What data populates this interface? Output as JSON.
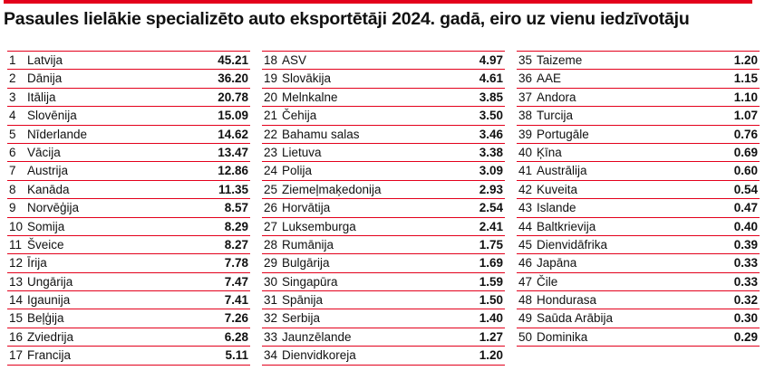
{
  "title": "Pasaules lielākie specializēto auto eksportētāji 2024. gadā, eiro uz vienu iedzīvotāju",
  "accent_color": "#e3001b",
  "chart_data": {
    "type": "table",
    "title": "Pasaules lielākie specializēto auto eksportētāji 2024. gadā, eiro uz vienu iedzīvotāju",
    "columns": [
      [
        {
          "rank": "1",
          "name": "Latvija",
          "value": "45.21"
        },
        {
          "rank": "2",
          "name": "Dānija",
          "value": "36.20"
        },
        {
          "rank": "3",
          "name": "Itālija",
          "value": "20.78"
        },
        {
          "rank": "4",
          "name": "Slovēnija",
          "value": "15.09"
        },
        {
          "rank": "5",
          "name": "Nīderlande",
          "value": "14.62"
        },
        {
          "rank": "6",
          "name": "Vācija",
          "value": "13.47"
        },
        {
          "rank": "7",
          "name": "Austrija",
          "value": "12.86"
        },
        {
          "rank": "8",
          "name": "Kanāda",
          "value": "11.35"
        },
        {
          "rank": "9",
          "name": "Norvēģija",
          "value": "8.57"
        },
        {
          "rank": "10",
          "name": "Somija",
          "value": "8.29"
        },
        {
          "rank": "11",
          "name": "Šveice",
          "value": "8.27"
        },
        {
          "rank": "12",
          "name": "Īrija",
          "value": "7.78"
        },
        {
          "rank": "13",
          "name": "Ungārija",
          "value": "7.47"
        },
        {
          "rank": "14",
          "name": "Igaunija",
          "value": "7.41"
        },
        {
          "rank": "15",
          "name": "Beļģija",
          "value": "7.26"
        },
        {
          "rank": "16",
          "name": "Zviedrija",
          "value": "6.28"
        },
        {
          "rank": "17",
          "name": "Francija",
          "value": "5.11"
        }
      ],
      [
        {
          "rank": "18",
          "name": "ASV",
          "value": "4.97"
        },
        {
          "rank": "19",
          "name": "Slovākija",
          "value": "4.61"
        },
        {
          "rank": "20",
          "name": "Melnkalne",
          "value": "3.85"
        },
        {
          "rank": "21",
          "name": "Čehija",
          "value": "3.50"
        },
        {
          "rank": "22",
          "name": "Bahamu salas",
          "value": "3.46"
        },
        {
          "rank": "23",
          "name": "Lietuva",
          "value": "3.38"
        },
        {
          "rank": "24",
          "name": "Polija",
          "value": "3.09"
        },
        {
          "rank": "25",
          "name": "Ziemeļmaķedonija",
          "value": "2.93"
        },
        {
          "rank": "26",
          "name": "Horvātija",
          "value": "2.54"
        },
        {
          "rank": "27",
          "name": "Luksemburga",
          "value": "2.41"
        },
        {
          "rank": "28",
          "name": "Rumānija",
          "value": "1.75"
        },
        {
          "rank": "29",
          "name": "Bulgārija",
          "value": "1.69"
        },
        {
          "rank": "30",
          "name": "Singapūra",
          "value": "1.59"
        },
        {
          "rank": "31",
          "name": "Spānija",
          "value": "1.50"
        },
        {
          "rank": "32",
          "name": "Serbija",
          "value": "1.40"
        },
        {
          "rank": "33",
          "name": "Jaunzēlande",
          "value": "1.27"
        },
        {
          "rank": "34",
          "name": "Dienvidkoreja",
          "value": "1.20"
        }
      ],
      [
        {
          "rank": "35",
          "name": "Taizeme",
          "value": "1.20"
        },
        {
          "rank": "36",
          "name": "AAE",
          "value": "1.15"
        },
        {
          "rank": "37",
          "name": "Andora",
          "value": "1.10"
        },
        {
          "rank": "38",
          "name": "Turcija",
          "value": "1.07"
        },
        {
          "rank": "39",
          "name": "Portugāle",
          "value": "0.76"
        },
        {
          "rank": "40",
          "name": "Ķīna",
          "value": "0.69"
        },
        {
          "rank": "41",
          "name": "Austrālija",
          "value": "0.60"
        },
        {
          "rank": "42",
          "name": "Kuveita",
          "value": "0.54"
        },
        {
          "rank": "43",
          "name": "Islande",
          "value": "0.47"
        },
        {
          "rank": "44",
          "name": "Baltkrievija",
          "value": "0.40"
        },
        {
          "rank": "45",
          "name": "Dienvidāfrika",
          "value": "0.39"
        },
        {
          "rank": "46",
          "name": "Japāna",
          "value": "0.33"
        },
        {
          "rank": "47",
          "name": "Čile",
          "value": "0.33"
        },
        {
          "rank": "48",
          "name": "Hondurasa",
          "value": "0.32"
        },
        {
          "rank": "49",
          "name": "Saūda Arābija",
          "value": "0.30"
        },
        {
          "rank": "50",
          "name": "Dominika",
          "value": "0.29"
        }
      ]
    ]
  }
}
